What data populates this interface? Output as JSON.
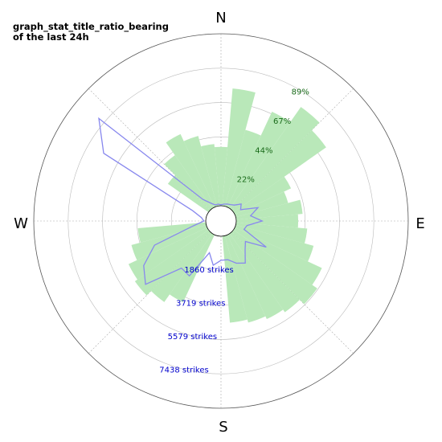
{
  "chart_data": {
    "type": "polar",
    "title_line1": "graph_stat_title_ratio_bearing",
    "title_line2": "of the last 24h",
    "directions": [
      "N",
      "E",
      "S",
      "W"
    ],
    "bearing_step_deg": 10,
    "ratio_max_percent": 111,
    "ratio_ticks": [
      "22%",
      "44%",
      "67%",
      "89%"
    ],
    "ratio_series": {
      "name": "",
      "color": "#b9e8b9",
      "bearings_deg": [
        0,
        10,
        20,
        30,
        40,
        50,
        60,
        70,
        80,
        90,
        100,
        110,
        120,
        130,
        140,
        150,
        160,
        170,
        180,
        190,
        200,
        210,
        220,
        230,
        240,
        250,
        260,
        270,
        280,
        290,
        300,
        310,
        320,
        330,
        340,
        350
      ],
      "values_percent": [
        38,
        76,
        51,
        68,
        80,
        73,
        40,
        35,
        43,
        40,
        46,
        52,
        62,
        66,
        62,
        60,
        58,
        56,
        0,
        0,
        0,
        48,
        54,
        58,
        56,
        50,
        44,
        0,
        0,
        0,
        0,
        32,
        42,
        52,
        47,
        40
      ]
    },
    "strikes_ticks": [
      "1860 strikes",
      "3719 strikes",
      "5579 strikes",
      "7438 strikes"
    ],
    "strikes_max": 9300,
    "strikes_series": {
      "name": "",
      "color": "#8888ee",
      "bearings_deg": [
        0,
        10,
        20,
        30,
        40,
        50,
        60,
        70,
        80,
        90,
        100,
        110,
        120,
        130,
        140,
        150,
        160,
        170,
        180,
        190,
        200,
        210,
        220,
        230,
        240,
        250,
        260,
        270,
        280,
        290,
        300,
        310,
        320,
        330,
        340,
        350
      ],
      "values": [
        50,
        100,
        150,
        200,
        300,
        600,
        400,
        1300,
        800,
        1400,
        600,
        500,
        2000,
        900,
        1200,
        1800,
        1600,
        1300,
        1300,
        1600,
        1000,
        2600,
        2500,
        4500,
        4000,
        3000,
        700,
        100,
        250,
        800,
        6500,
        7800,
        700,
        300,
        100,
        100
      ]
    }
  }
}
